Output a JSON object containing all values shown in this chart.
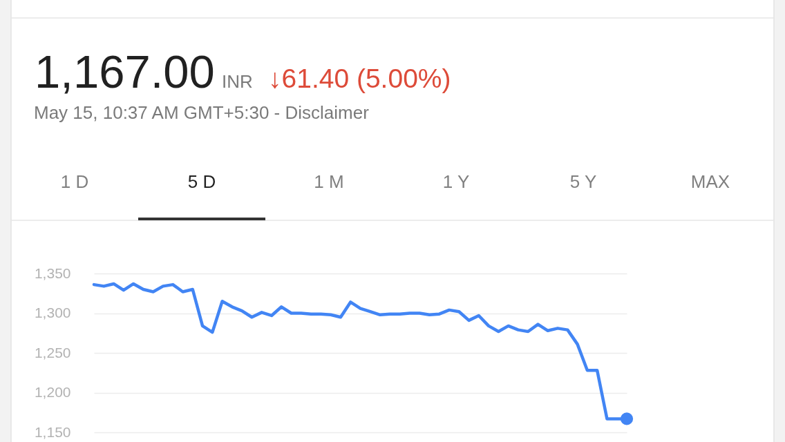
{
  "chart_data": {
    "type": "line",
    "title": "1,167.00",
    "subtitle": "May 15, 10:37 AM GMT+5:30 - Disclaimer",
    "annotations": [
      "INR",
      "↓61.40 (5.00%)",
      "1 D",
      "5 D",
      "1 M",
      "1 Y",
      "5 Y",
      "MAX"
    ],
    "categories": [
      null,
      null,
      null,
      null,
      null,
      null,
      null,
      null,
      null,
      null,
      null,
      null,
      null,
      null,
      null,
      null,
      null,
      null,
      null,
      null,
      null,
      null,
      null,
      null,
      null,
      null,
      null,
      null,
      null,
      null,
      null,
      null,
      null,
      null,
      null,
      null,
      null,
      null,
      null,
      null,
      null,
      null,
      null,
      null,
      null,
      null,
      null,
      null,
      null,
      null,
      null,
      null,
      null,
      null,
      null
    ],
    "series": [
      {
        "color": "#4285f4",
        "values": [
          1336,
          1334,
          1337,
          1329,
          1337,
          1330,
          1327,
          1334,
          1336,
          1327,
          1330,
          1284,
          1276,
          1315,
          1308,
          1303,
          1295,
          1301,
          1297,
          1308,
          1300,
          1300,
          1299,
          1299,
          1298,
          1295,
          1314,
          1306,
          1302,
          1298,
          1299,
          1299,
          1300,
          1300,
          1298,
          1299,
          1304,
          1302,
          1291,
          1297,
          1284,
          1277,
          1284,
          1279,
          1277,
          1286,
          1278,
          1281,
          1279,
          1261,
          1228,
          1228,
          1167,
          1167,
          1167
        ]
      },
      {
        "type": "scatter",
        "color": "#4285f4",
        "values": [
          null,
          null,
          null,
          null,
          null,
          null,
          null,
          null,
          null,
          null,
          null,
          null,
          null,
          null,
          null,
          null,
          null,
          null,
          null,
          null,
          null,
          null,
          null,
          null,
          null,
          null,
          null,
          null,
          null,
          null,
          null,
          null,
          null,
          null,
          null,
          null,
          null,
          null,
          null,
          null,
          null,
          null,
          null,
          null,
          null,
          null,
          null,
          null,
          null,
          null,
          null,
          null,
          null,
          null,
          1167
        ]
      }
    ],
    "ylim": [
      1150,
      1350
    ],
    "yticks": [
      {
        "value": 1150,
        "label": "1,150"
      },
      {
        "value": 1200,
        "label": "1,200"
      },
      {
        "value": 1250,
        "label": "1,250"
      },
      {
        "value": 1300,
        "label": "1,300"
      },
      {
        "value": 1350,
        "label": "1,350"
      }
    ],
    "grid": "y",
    "tick_labels": "y",
    "line_style": "solid"
  }
}
